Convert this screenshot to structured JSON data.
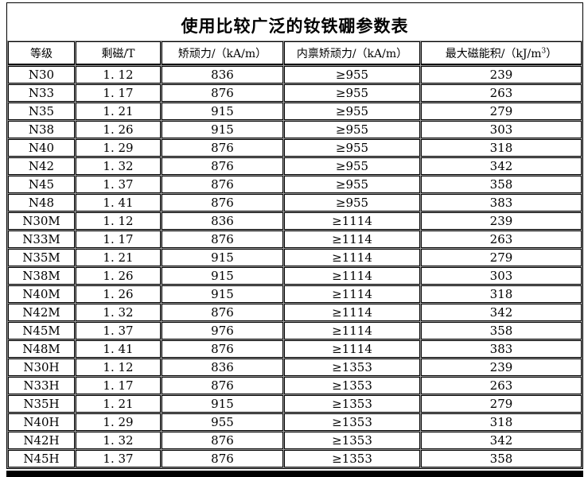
{
  "title": "使用比较广泛的钕铁硼参数表",
  "table": {
    "headers": {
      "grade": "等级",
      "remanence": "剩磁/T",
      "coercivity": "矫顽力/（kA/m）",
      "intrinsic": "内禀矫顽力/（kA/m）",
      "energy_pre": "最大磁能积/（kJ/m",
      "energy_sup": "3",
      "energy_post": "）"
    },
    "rows": [
      [
        "N30",
        "1. 12",
        "836",
        "≥955",
        "239"
      ],
      [
        "N33",
        "1. 17",
        "876",
        "≥955",
        "263"
      ],
      [
        "N35",
        "1. 21",
        "915",
        "≥955",
        "279"
      ],
      [
        "N38",
        "1. 26",
        "915",
        "≥955",
        "303"
      ],
      [
        "N40",
        "1. 29",
        "876",
        "≥955",
        "318"
      ],
      [
        "N42",
        "1. 32",
        "876",
        "≥955",
        "342"
      ],
      [
        "N45",
        "1. 37",
        "876",
        "≥955",
        "358"
      ],
      [
        "N48",
        "1. 41",
        "876",
        "≥955",
        "383"
      ],
      [
        "N30M",
        "1. 12",
        "836",
        "≥1114",
        "239"
      ],
      [
        "N33M",
        "1. 17",
        "876",
        "≥1114",
        "263"
      ],
      [
        "N35M",
        "1. 21",
        "915",
        "≥1114",
        "279"
      ],
      [
        "N38M",
        "1. 26",
        "915",
        "≥1114",
        "303"
      ],
      [
        "N40M",
        "1. 26",
        "915",
        "≥1114",
        "318"
      ],
      [
        "N42M",
        "1. 32",
        "876",
        "≥1114",
        "342"
      ],
      [
        "N45M",
        "1. 37",
        "976",
        "≥1114",
        "358"
      ],
      [
        "N48M",
        "1. 41",
        "876",
        "≥1114",
        "383"
      ],
      [
        "N30H",
        "1. 12",
        "836",
        "≥1353",
        "239"
      ],
      [
        "N33H",
        "1. 17",
        "876",
        "≥1353",
        "263"
      ],
      [
        "N35H",
        "1. 21",
        "915",
        "≥1353",
        "279"
      ],
      [
        "N40H",
        "1. 29",
        "955",
        "≥1353",
        "318"
      ],
      [
        "N42H",
        "1. 32",
        "876",
        "≥1353",
        "342"
      ],
      [
        "N45H",
        "1. 37",
        "876",
        "≥1353",
        "358"
      ]
    ]
  },
  "colors": {
    "text": "#000000",
    "border": "#000000",
    "gridline": "#9b9b9b",
    "background": "#ffffff"
  },
  "chart_data": {
    "type": "table",
    "title": "使用比较广泛的钕铁硼参数表",
    "columns": [
      "等级",
      "剩磁/T",
      "矫顽力/（kA/m）",
      "内禀矫顽力/（kA/m）",
      "最大磁能积/（kJ/m3）"
    ],
    "rows": [
      [
        "N30",
        1.12,
        836,
        "≥955",
        239
      ],
      [
        "N33",
        1.17,
        876,
        "≥955",
        263
      ],
      [
        "N35",
        1.21,
        915,
        "≥955",
        279
      ],
      [
        "N38",
        1.26,
        915,
        "≥955",
        303
      ],
      [
        "N40",
        1.29,
        876,
        "≥955",
        318
      ],
      [
        "N42",
        1.32,
        876,
        "≥955",
        342
      ],
      [
        "N45",
        1.37,
        876,
        "≥955",
        358
      ],
      [
        "N48",
        1.41,
        876,
        "≥955",
        383
      ],
      [
        "N30M",
        1.12,
        836,
        "≥1114",
        239
      ],
      [
        "N33M",
        1.17,
        876,
        "≥1114",
        263
      ],
      [
        "N35M",
        1.21,
        915,
        "≥1114",
        279
      ],
      [
        "N38M",
        1.26,
        915,
        "≥1114",
        303
      ],
      [
        "N40M",
        1.26,
        915,
        "≥1114",
        318
      ],
      [
        "N42M",
        1.32,
        876,
        "≥1114",
        342
      ],
      [
        "N45M",
        1.37,
        976,
        "≥1114",
        358
      ],
      [
        "N48M",
        1.41,
        876,
        "≥1114",
        383
      ],
      [
        "N30H",
        1.12,
        836,
        "≥1353",
        239
      ],
      [
        "N33H",
        1.17,
        876,
        "≥1353",
        263
      ],
      [
        "N35H",
        1.21,
        915,
        "≥1353",
        279
      ],
      [
        "N40H",
        1.29,
        955,
        "≥1353",
        318
      ],
      [
        "N42H",
        1.32,
        876,
        "≥1353",
        342
      ],
      [
        "N45H",
        1.37,
        876,
        "≥1353",
        358
      ]
    ]
  }
}
